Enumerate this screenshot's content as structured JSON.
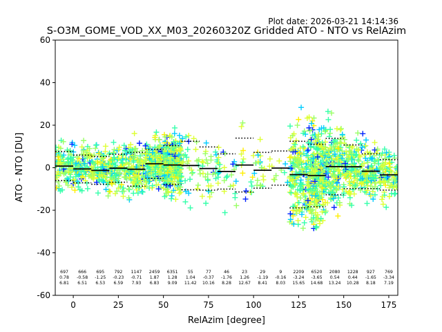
{
  "chart_data": {
    "type": "scatter",
    "plot_date": "Plot date: 2026-03-21 14:14:36",
    "title": "S-O3M_GOME_VOD_XX_M03_20260320Z Gridded ATO - NTO vs RelAzim",
    "xlabel": "RelAzim [degree]",
    "ylabel": "ATO - NTO [DU]",
    "xlim": [
      -10,
      180
    ],
    "ylim": [
      -60,
      60
    ],
    "xticks": [
      0,
      25,
      50,
      75,
      100,
      125,
      150,
      175
    ],
    "yticks": [
      -60,
      -40,
      -20,
      0,
      20,
      40,
      60
    ],
    "marker": "+",
    "point_colors": [
      "#0022ff",
      "#00ccff",
      "#33ffaa",
      "#99ff66",
      "#ddff33",
      "#ffee00"
    ],
    "bins": [
      {
        "x": -5,
        "count": "697",
        "mean": "0.78",
        "std": "6.81"
      },
      {
        "x": 5,
        "count": "666",
        "mean": "-0.58",
        "std": "6.51"
      },
      {
        "x": 15,
        "count": "695",
        "mean": "-1.25",
        "std": "6.53"
      },
      {
        "x": 25,
        "count": "792",
        "mean": "-0.23",
        "std": "6.59"
      },
      {
        "x": 35,
        "count": "1147",
        "mean": "-0.71",
        "std": "7.93"
      },
      {
        "x": 45,
        "count": "2459",
        "mean": "1.87",
        "std": "6.83"
      },
      {
        "x": 55,
        "count": "6351",
        "mean": "1.28",
        "std": "9.09"
      },
      {
        "x": 65,
        "count": "55",
        "mean": "1.04",
        "std": "11.42"
      },
      {
        "x": 75,
        "count": "77",
        "mean": "-0.37",
        "std": "10.16"
      },
      {
        "x": 85,
        "count": "46",
        "mean": "-1.76",
        "std": "8.28"
      },
      {
        "x": 95,
        "count": "23",
        "mean": "1.26",
        "std": "12.67"
      },
      {
        "x": 105,
        "count": "29",
        "mean": "-1.19",
        "std": "8.41"
      },
      {
        "x": 115,
        "count": "9",
        "mean": "-0.16",
        "std": "8.03"
      },
      {
        "x": 125,
        "count": "2209",
        "mean": "-3.24",
        "std": "15.65"
      },
      {
        "x": 135,
        "count": "6520",
        "mean": "-3.65",
        "std": "14.68"
      },
      {
        "x": 145,
        "count": "2080",
        "mean": "0.54",
        "std": "13.24"
      },
      {
        "x": 155,
        "count": "1228",
        "mean": "0.44",
        "std": "10.28"
      },
      {
        "x": 165,
        "count": "927",
        "mean": "-1.65",
        "std": "8.18"
      },
      {
        "x": 175,
        "count": "769",
        "mean": "-3.34",
        "std": "7.19"
      }
    ]
  }
}
